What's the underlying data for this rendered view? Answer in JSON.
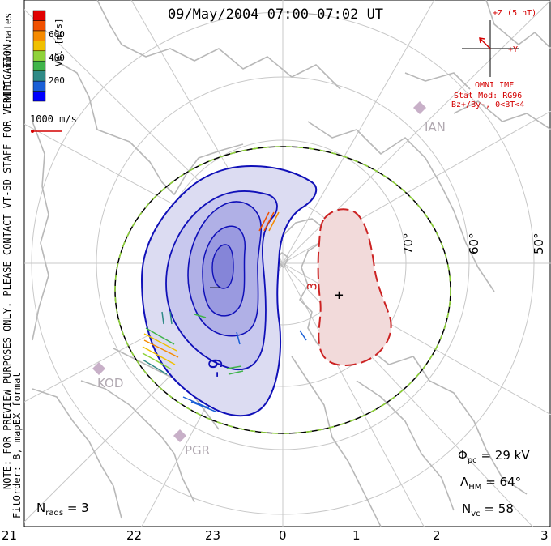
{
  "title": "09/May/2004 07:00–07:02 UT",
  "notice": "NOTE: FOR PREVIEW PURPOSES ONLY. PLEASE CONTACT VT-SD STAFF FOR VERIFICATION.",
  "fit_info": "FitOrder: 8, mapEX format",
  "coord_label": "MLT coordinates",
  "velocity_scale": {
    "axis_label": "Vel [m/s]",
    "ticks": [
      "600",
      "400",
      "200"
    ],
    "colors": [
      "#0000ff",
      "#1a5fd6",
      "#2f8a86",
      "#3fb44a",
      "#8fd23a",
      "#f0c000",
      "#f58a00",
      "#f05000",
      "#e00000"
    ]
  },
  "reference_vector": "1000 m/s",
  "imf": {
    "clock_top": "+Z (5 nT)",
    "clock_right": "+Y",
    "source": "OMNI IMF",
    "model_line1": "Stat Mod: RG96",
    "model_line2": "Bz+/By-, 0<BT<4"
  },
  "latitude_labels": [
    "70°",
    "60°",
    "50°"
  ],
  "stations": [
    "IAN",
    "KOD",
    "PGR"
  ],
  "mlt_ticks": [
    "21",
    "22",
    "23",
    "0",
    "1",
    "2",
    "3"
  ],
  "stats": {
    "nrads_label": "N",
    "nrads_sub": "rads",
    "nrads_value": "= 3",
    "phi_label": "Φ",
    "phi_sub": "pc",
    "phi_value": "= 29 kV",
    "lambda_label": "Λ",
    "lambda_sub": "HM",
    "lambda_value": "= 64°",
    "nvc_label": "N",
    "nvc_sub": "vc",
    "nvc_value": "= 58"
  },
  "contour_labels": {
    "negative_potential": "-9",
    "positive_potential": "3",
    "min_marker": "–",
    "max_marker": "+"
  },
  "colors": {
    "negative_cell": "#3a3ad0",
    "positive_cell": "#cc2222",
    "coastline": "#b8b8b8",
    "grid": "#c8c8c8",
    "hm_boundary_a": "#000000",
    "hm_boundary_b": "#8fd23a"
  }
}
